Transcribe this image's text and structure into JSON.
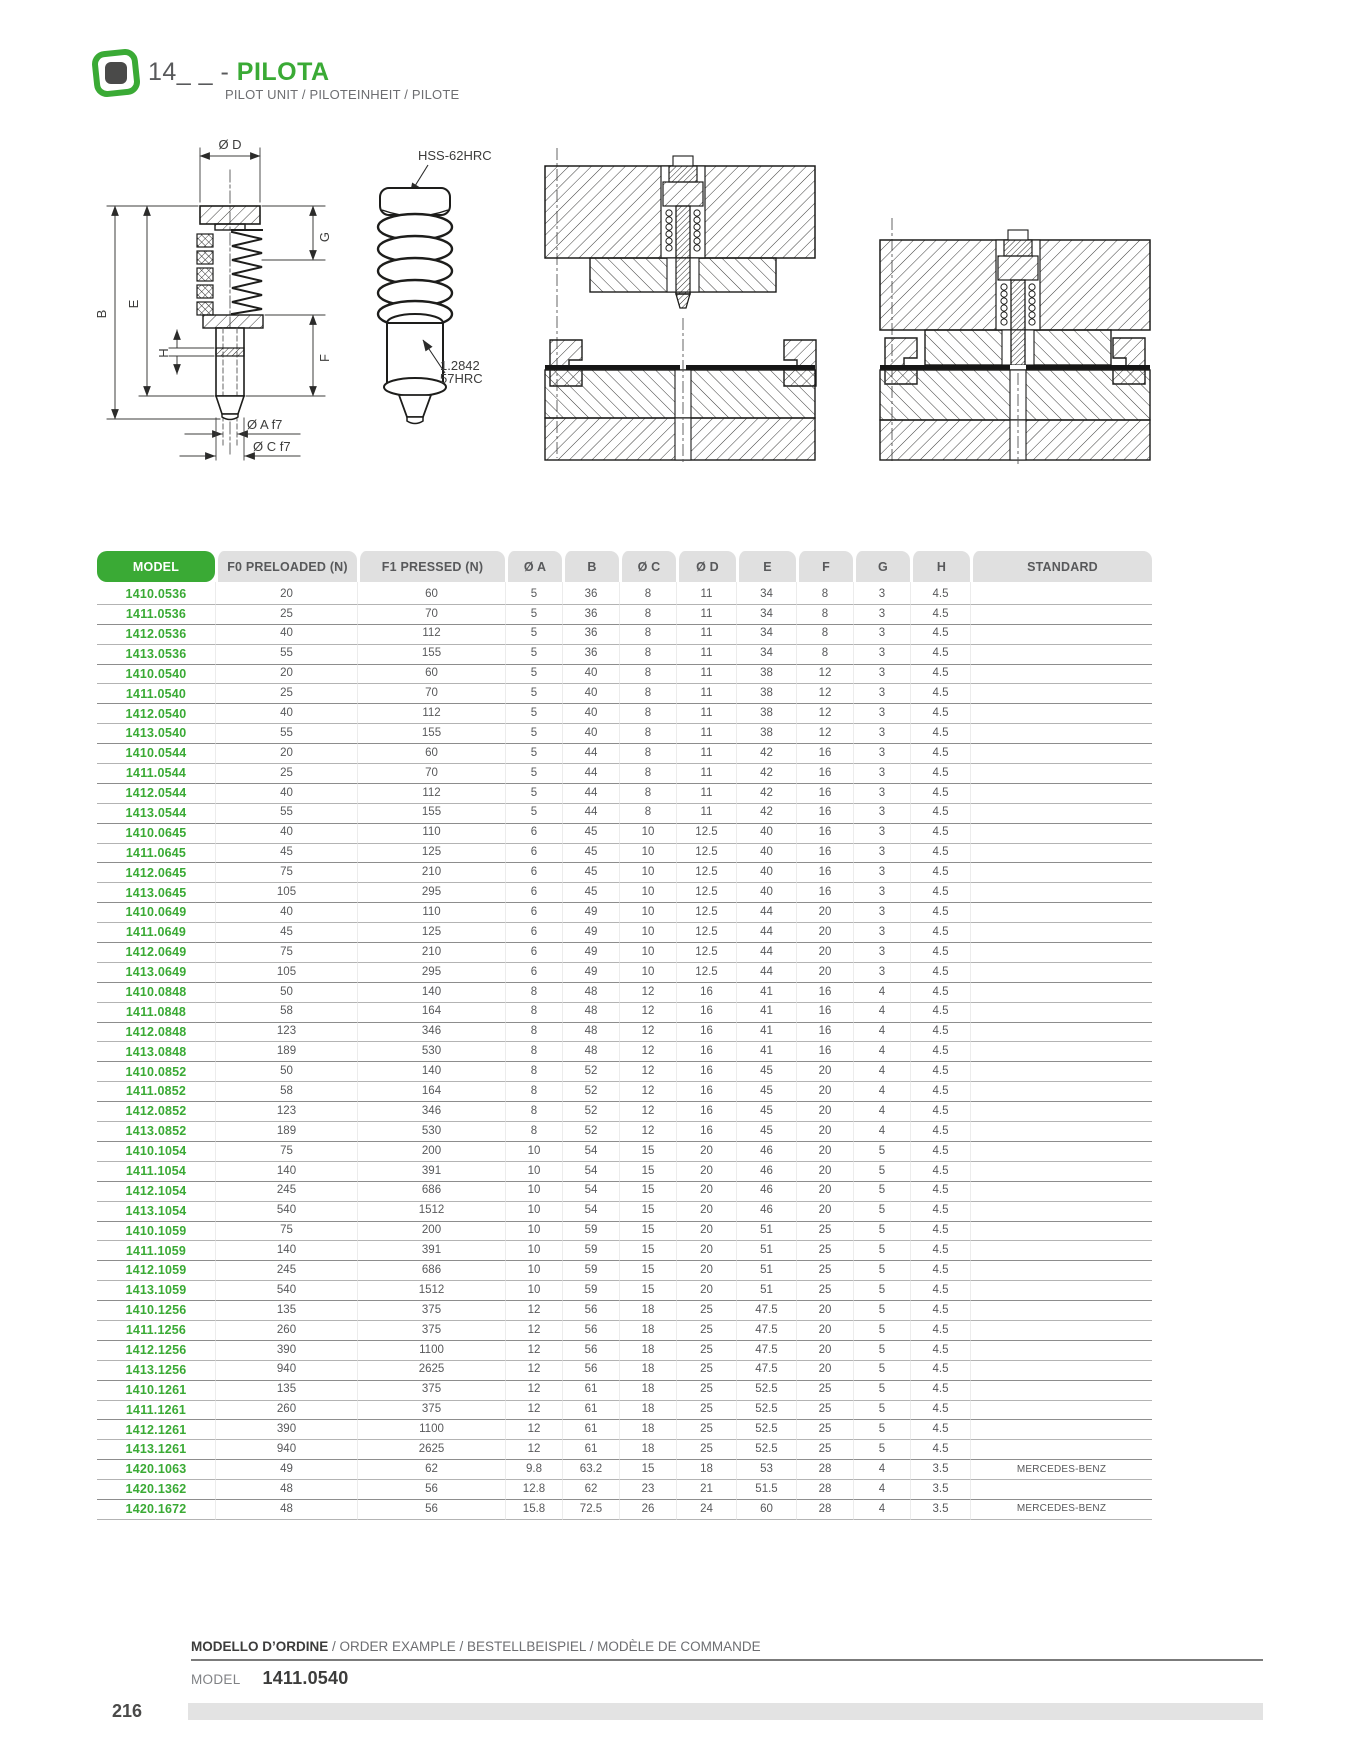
{
  "header": {
    "code": "14_ _",
    "separator": " - ",
    "title": "PILOTA",
    "subtitle": "PILOT UNIT / PILOTEINHEIT / PILOTE"
  },
  "drawings": {
    "figure1": {
      "labels": {
        "diameter_d": "Ø D",
        "g": "G",
        "b": "B",
        "e": "E",
        "h": "H",
        "f": "F",
        "diameter_a": "Ø A f7",
        "diameter_c": "Ø C f7"
      }
    },
    "figure2": {
      "spring_material": "HSS-62HRC",
      "tip_material_line1": "1.2842",
      "tip_material_line2": "57HRC"
    }
  },
  "table": {
    "columns": [
      "MODEL",
      "F0 PRELOADED (N)",
      "F1 PRESSED (N)",
      "Ø A",
      "B",
      "Ø C",
      "Ø D",
      "E",
      "F",
      "G",
      "H",
      "STANDARD"
    ],
    "rows": [
      [
        "1410.0536",
        "20",
        "60",
        "5",
        "36",
        "8",
        "11",
        "34",
        "8",
        "3",
        "4.5",
        ""
      ],
      [
        "1411.0536",
        "25",
        "70",
        "5",
        "36",
        "8",
        "11",
        "34",
        "8",
        "3",
        "4.5",
        ""
      ],
      [
        "1412.0536",
        "40",
        "112",
        "5",
        "36",
        "8",
        "11",
        "34",
        "8",
        "3",
        "4.5",
        ""
      ],
      [
        "1413.0536",
        "55",
        "155",
        "5",
        "36",
        "8",
        "11",
        "34",
        "8",
        "3",
        "4.5",
        ""
      ],
      [
        "1410.0540",
        "20",
        "60",
        "5",
        "40",
        "8",
        "11",
        "38",
        "12",
        "3",
        "4.5",
        ""
      ],
      [
        "1411.0540",
        "25",
        "70",
        "5",
        "40",
        "8",
        "11",
        "38",
        "12",
        "3",
        "4.5",
        ""
      ],
      [
        "1412.0540",
        "40",
        "112",
        "5",
        "40",
        "8",
        "11",
        "38",
        "12",
        "3",
        "4.5",
        ""
      ],
      [
        "1413.0540",
        "55",
        "155",
        "5",
        "40",
        "8",
        "11",
        "38",
        "12",
        "3",
        "4.5",
        ""
      ],
      [
        "1410.0544",
        "20",
        "60",
        "5",
        "44",
        "8",
        "11",
        "42",
        "16",
        "3",
        "4.5",
        ""
      ],
      [
        "1411.0544",
        "25",
        "70",
        "5",
        "44",
        "8",
        "11",
        "42",
        "16",
        "3",
        "4.5",
        ""
      ],
      [
        "1412.0544",
        "40",
        "112",
        "5",
        "44",
        "8",
        "11",
        "42",
        "16",
        "3",
        "4.5",
        ""
      ],
      [
        "1413.0544",
        "55",
        "155",
        "5",
        "44",
        "8",
        "11",
        "42",
        "16",
        "3",
        "4.5",
        ""
      ],
      [
        "1410.0645",
        "40",
        "110",
        "6",
        "45",
        "10",
        "12.5",
        "40",
        "16",
        "3",
        "4.5",
        ""
      ],
      [
        "1411.0645",
        "45",
        "125",
        "6",
        "45",
        "10",
        "12.5",
        "40",
        "16",
        "3",
        "4.5",
        ""
      ],
      [
        "1412.0645",
        "75",
        "210",
        "6",
        "45",
        "10",
        "12.5",
        "40",
        "16",
        "3",
        "4.5",
        ""
      ],
      [
        "1413.0645",
        "105",
        "295",
        "6",
        "45",
        "10",
        "12.5",
        "40",
        "16",
        "3",
        "4.5",
        ""
      ],
      [
        "1410.0649",
        "40",
        "110",
        "6",
        "49",
        "10",
        "12.5",
        "44",
        "20",
        "3",
        "4.5",
        ""
      ],
      [
        "1411.0649",
        "45",
        "125",
        "6",
        "49",
        "10",
        "12.5",
        "44",
        "20",
        "3",
        "4.5",
        ""
      ],
      [
        "1412.0649",
        "75",
        "210",
        "6",
        "49",
        "10",
        "12.5",
        "44",
        "20",
        "3",
        "4.5",
        ""
      ],
      [
        "1413.0649",
        "105",
        "295",
        "6",
        "49",
        "10",
        "12.5",
        "44",
        "20",
        "3",
        "4.5",
        ""
      ],
      [
        "1410.0848",
        "50",
        "140",
        "8",
        "48",
        "12",
        "16",
        "41",
        "16",
        "4",
        "4.5",
        ""
      ],
      [
        "1411.0848",
        "58",
        "164",
        "8",
        "48",
        "12",
        "16",
        "41",
        "16",
        "4",
        "4.5",
        ""
      ],
      [
        "1412.0848",
        "123",
        "346",
        "8",
        "48",
        "12",
        "16",
        "41",
        "16",
        "4",
        "4.5",
        ""
      ],
      [
        "1413.0848",
        "189",
        "530",
        "8",
        "48",
        "12",
        "16",
        "41",
        "16",
        "4",
        "4.5",
        ""
      ],
      [
        "1410.0852",
        "50",
        "140",
        "8",
        "52",
        "12",
        "16",
        "45",
        "20",
        "4",
        "4.5",
        ""
      ],
      [
        "1411.0852",
        "58",
        "164",
        "8",
        "52",
        "12",
        "16",
        "45",
        "20",
        "4",
        "4.5",
        ""
      ],
      [
        "1412.0852",
        "123",
        "346",
        "8",
        "52",
        "12",
        "16",
        "45",
        "20",
        "4",
        "4.5",
        ""
      ],
      [
        "1413.0852",
        "189",
        "530",
        "8",
        "52",
        "12",
        "16",
        "45",
        "20",
        "4",
        "4.5",
        ""
      ],
      [
        "1410.1054",
        "75",
        "200",
        "10",
        "54",
        "15",
        "20",
        "46",
        "20",
        "5",
        "4.5",
        ""
      ],
      [
        "1411.1054",
        "140",
        "391",
        "10",
        "54",
        "15",
        "20",
        "46",
        "20",
        "5",
        "4.5",
        ""
      ],
      [
        "1412.1054",
        "245",
        "686",
        "10",
        "54",
        "15",
        "20",
        "46",
        "20",
        "5",
        "4.5",
        ""
      ],
      [
        "1413.1054",
        "540",
        "1512",
        "10",
        "54",
        "15",
        "20",
        "46",
        "20",
        "5",
        "4.5",
        ""
      ],
      [
        "1410.1059",
        "75",
        "200",
        "10",
        "59",
        "15",
        "20",
        "51",
        "25",
        "5",
        "4.5",
        ""
      ],
      [
        "1411.1059",
        "140",
        "391",
        "10",
        "59",
        "15",
        "20",
        "51",
        "25",
        "5",
        "4.5",
        ""
      ],
      [
        "1412.1059",
        "245",
        "686",
        "10",
        "59",
        "15",
        "20",
        "51",
        "25",
        "5",
        "4.5",
        ""
      ],
      [
        "1413.1059",
        "540",
        "1512",
        "10",
        "59",
        "15",
        "20",
        "51",
        "25",
        "5",
        "4.5",
        ""
      ],
      [
        "1410.1256",
        "135",
        "375",
        "12",
        "56",
        "18",
        "25",
        "47.5",
        "20",
        "5",
        "4.5",
        ""
      ],
      [
        "1411.1256",
        "260",
        "375",
        "12",
        "56",
        "18",
        "25",
        "47.5",
        "20",
        "5",
        "4.5",
        ""
      ],
      [
        "1412.1256",
        "390",
        "1100",
        "12",
        "56",
        "18",
        "25",
        "47.5",
        "20",
        "5",
        "4.5",
        ""
      ],
      [
        "1413.1256",
        "940",
        "2625",
        "12",
        "56",
        "18",
        "25",
        "47.5",
        "20",
        "5",
        "4.5",
        ""
      ],
      [
        "1410.1261",
        "135",
        "375",
        "12",
        "61",
        "18",
        "25",
        "52.5",
        "25",
        "5",
        "4.5",
        ""
      ],
      [
        "1411.1261",
        "260",
        "375",
        "12",
        "61",
        "18",
        "25",
        "52.5",
        "25",
        "5",
        "4.5",
        ""
      ],
      [
        "1412.1261",
        "390",
        "1100",
        "12",
        "61",
        "18",
        "25",
        "52.5",
        "25",
        "5",
        "4.5",
        ""
      ],
      [
        "1413.1261",
        "940",
        "2625",
        "12",
        "61",
        "18",
        "25",
        "52.5",
        "25",
        "5",
        "4.5",
        ""
      ],
      [
        "1420.1063",
        "49",
        "62",
        "9.8",
        "63.2",
        "15",
        "18",
        "53",
        "28",
        "4",
        "3.5",
        "MERCEDES-BENZ"
      ],
      [
        "1420.1362",
        "48",
        "56",
        "12.8",
        "62",
        "23",
        "21",
        "51.5",
        "28",
        "4",
        "3.5",
        ""
      ],
      [
        "1420.1672",
        "48",
        "56",
        "15.8",
        "72.5",
        "26",
        "24",
        "60",
        "28",
        "4",
        "3.5",
        "MERCEDES-BENZ"
      ]
    ]
  },
  "order_example": {
    "heading_bold": "MODELLO D’ORDINE",
    "heading_rest": " / ORDER EXAMPLE / BESTELLBEISPIEL / MODÈLE DE COMMANDE",
    "model_label": "MODEL",
    "model_value": "1411.0540"
  },
  "footer": {
    "page_number": "216"
  },
  "colors": {
    "accent_green": "#3aaa35",
    "header_gray": "#e0e0e0",
    "text_gray": "#58595b"
  }
}
